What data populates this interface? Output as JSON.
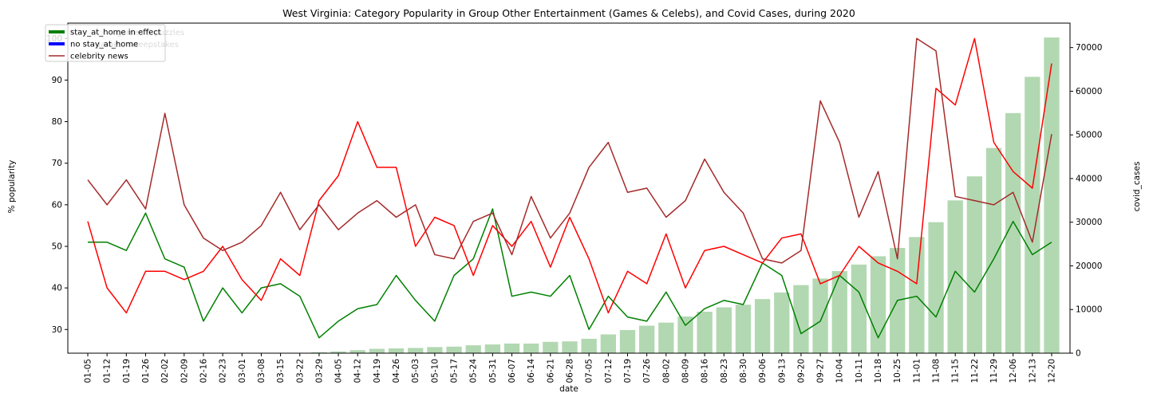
{
  "chart_data": {
    "type": "line",
    "title": "West Virginia: Category Popularity in Group Other Entertainment (Games & Celebs), and Covid Cases, during 2020",
    "xlabel": "date",
    "ylabel": "% popularity",
    "y2label": "covid_cases",
    "ylim": [
      24.3,
      103.7
    ],
    "y2lim": [
      0,
      75600
    ],
    "yticks": [
      30,
      40,
      50,
      60,
      70,
      80,
      90,
      100
    ],
    "y2ticks": [
      0,
      10000,
      20000,
      30000,
      40000,
      50000,
      60000,
      70000
    ],
    "categories": [
      "01-05",
      "01-12",
      "01-19",
      "01-26",
      "02-02",
      "02-09",
      "02-16",
      "02-23",
      "03-01",
      "03-08",
      "03-15",
      "03-22",
      "03-29",
      "04-05",
      "04-12",
      "04-19",
      "04-26",
      "05-03",
      "05-10",
      "05-17",
      "05-24",
      "05-31",
      "06-07",
      "06-14",
      "06-21",
      "06-28",
      "07-05",
      "07-12",
      "07-19",
      "07-26",
      "08-02",
      "08-09",
      "08-16",
      "08-23",
      "08-30",
      "09-06",
      "09-13",
      "09-20",
      "09-27",
      "10-04",
      "10-11",
      "10-18",
      "10-25",
      "11-01",
      "11-08",
      "11-15",
      "11-22",
      "11-29",
      "12-06",
      "12-13",
      "12-20"
    ],
    "legend": {
      "placement": "upper-left",
      "entries": [
        {
          "label": "stay_at_home in effect",
          "color": "#008000",
          "style": "thick"
        },
        {
          "label": "no stay_at_home",
          "color": "#0000ff",
          "style": "thick"
        },
        {
          "label": "celebrity news",
          "color": "#a52a2a",
          "style": "line"
        }
      ],
      "hidden_entries": [
        "games & puzzles",
        "games, sweepstakes"
      ]
    },
    "series": [
      {
        "color": "#008000",
        "axis": "left",
        "values": [
          51,
          51,
          49,
          58,
          47,
          45,
          32,
          40,
          34,
          40,
          41,
          38,
          28,
          32,
          35,
          36,
          43,
          37,
          32,
          43,
          47,
          59,
          38,
          39,
          38,
          43,
          30,
          38,
          33,
          32,
          39,
          31,
          35,
          37,
          36,
          46,
          43,
          29,
          32,
          43,
          39,
          28,
          37,
          38,
          33,
          44,
          39,
          47,
          56,
          48,
          51
        ]
      },
      {
        "color": "#ff0000",
        "axis": "left",
        "values": [
          56,
          40,
          34,
          44,
          44,
          42,
          44,
          50,
          42,
          37,
          47,
          43,
          61,
          67,
          80,
          69,
          69,
          50,
          57,
          55,
          43,
          55,
          50,
          56,
          45,
          57,
          47,
          34,
          44,
          41,
          53,
          40,
          49,
          50,
          48,
          46,
          52,
          53,
          41,
          43,
          50,
          46,
          44,
          41,
          88,
          84,
          100,
          75,
          68,
          64,
          94
        ]
      },
      {
        "name": "celebrity news",
        "color": "#a52a2a",
        "axis": "left",
        "values": [
          66,
          60,
          66,
          59,
          82,
          60,
          52,
          49,
          51,
          55,
          63,
          54,
          60,
          54,
          58,
          61,
          57,
          60,
          48,
          47,
          56,
          58,
          48,
          62,
          52,
          58,
          69,
          75,
          63,
          64,
          57,
          61,
          71,
          63,
          58,
          47,
          46,
          49,
          85,
          75,
          57,
          68,
          47,
          100,
          97,
          62,
          61,
          60,
          63,
          51,
          77
        ]
      },
      {
        "name": "covid_cases",
        "type": "bar",
        "color": "#b2d8b2",
        "axis": "right",
        "values": [
          0,
          0,
          0,
          0,
          0,
          0,
          0,
          0,
          0,
          0,
          0,
          0,
          200,
          400,
          700,
          1000,
          1100,
          1200,
          1400,
          1500,
          1800,
          2000,
          2200,
          2200,
          2600,
          2700,
          3300,
          4300,
          5300,
          6300,
          7000,
          8400,
          9500,
          10500,
          11100,
          12400,
          13900,
          15600,
          17100,
          18800,
          20300,
          22200,
          24100,
          26600,
          30000,
          35000,
          40500,
          47000,
          55000,
          63300,
          72300
        ]
      }
    ]
  }
}
